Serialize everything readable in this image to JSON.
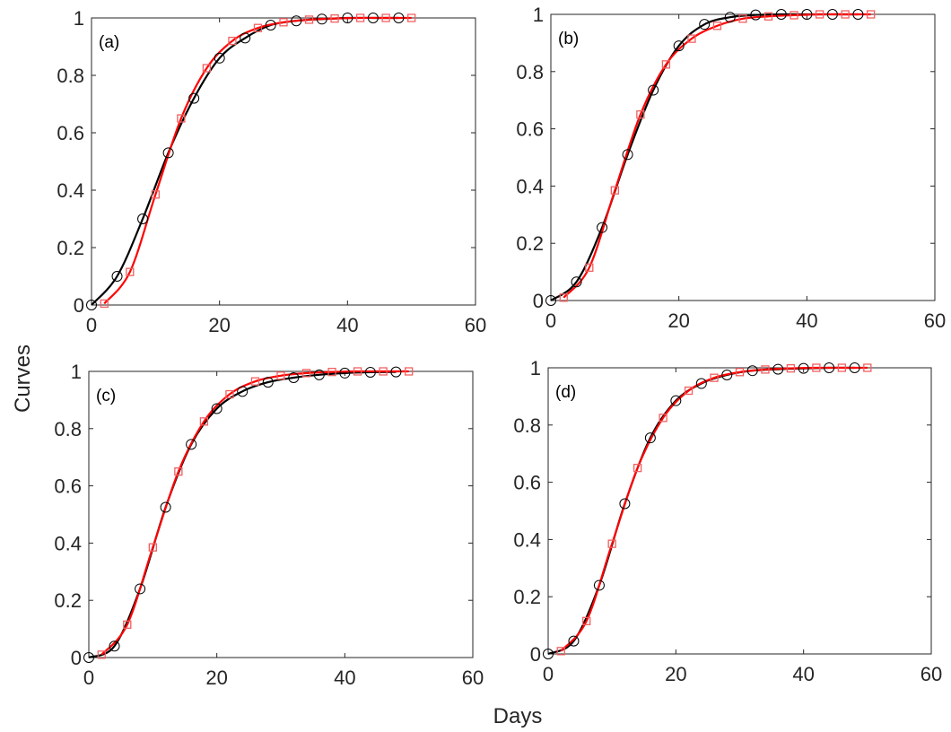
{
  "chart_data": {
    "type": "line",
    "layout": "2x2 subplots",
    "xlabel": "Days",
    "ylabel": "Curves",
    "xlim": [
      0,
      60
    ],
    "ylim": [
      0,
      1
    ],
    "xticks": [
      "0",
      "20",
      "40",
      "60"
    ],
    "yticks": [
      "0",
      "0.2",
      "0.4",
      "0.6",
      "0.8",
      "1"
    ],
    "grid": false,
    "colors": {
      "black_series": "#000000",
      "red_series": "#ff0000",
      "red_marker": "#f06060"
    },
    "panels": [
      {
        "label": "(a)",
        "series": [
          {
            "color": "#000000",
            "marker": "circle",
            "x": [
              0,
              4,
              8,
              12,
              16,
              20,
              24,
              28,
              32,
              36,
              40,
              44,
              48
            ],
            "y": [
              0,
              0.1,
              0.3,
              0.53,
              0.72,
              0.86,
              0.93,
              0.975,
              0.99,
              0.996,
              1,
              1,
              1
            ]
          },
          {
            "color": "#ff0000",
            "marker": "square",
            "x": [
              2,
              6,
              10,
              14,
              18,
              22,
              26,
              30,
              34,
              38,
              42,
              46,
              50
            ],
            "y": [
              0.005,
              0.115,
              0.385,
              0.65,
              0.825,
              0.92,
              0.965,
              0.985,
              0.994,
              0.998,
              1,
              1,
              1
            ]
          }
        ]
      },
      {
        "label": "(b)",
        "series": [
          {
            "color": "#000000",
            "marker": "circle",
            "x": [
              0,
              4,
              8,
              12,
              16,
              20,
              24,
              28,
              32,
              36,
              40,
              44,
              48
            ],
            "y": [
              0,
              0.065,
              0.255,
              0.51,
              0.735,
              0.89,
              0.965,
              0.99,
              0.998,
              1,
              1,
              1,
              1
            ]
          },
          {
            "color": "#ff0000",
            "marker": "square",
            "x": [
              2,
              6,
              10,
              14,
              18,
              22,
              26,
              30,
              34,
              38,
              42,
              46,
              50
            ],
            "y": [
              0.01,
              0.115,
              0.385,
              0.65,
              0.825,
              0.915,
              0.96,
              0.985,
              0.993,
              0.997,
              1,
              1,
              1
            ]
          }
        ]
      },
      {
        "label": "(c)",
        "series": [
          {
            "color": "#000000",
            "marker": "circle",
            "x": [
              0,
              4,
              8,
              12,
              16,
              20,
              24,
              28,
              32,
              36,
              40,
              44,
              48
            ],
            "y": [
              0,
              0.04,
              0.24,
              0.525,
              0.745,
              0.87,
              0.93,
              0.962,
              0.978,
              0.988,
              0.994,
              0.997,
              0.998
            ]
          },
          {
            "color": "#ff0000",
            "marker": "square",
            "x": [
              2,
              6,
              10,
              14,
              18,
              22,
              26,
              30,
              34,
              38,
              42,
              46,
              50
            ],
            "y": [
              0.01,
              0.115,
              0.385,
              0.65,
              0.825,
              0.92,
              0.965,
              0.985,
              0.994,
              0.998,
              1,
              1,
              1
            ]
          }
        ]
      },
      {
        "label": "(d)",
        "series": [
          {
            "color": "#000000",
            "marker": "circle",
            "x": [
              0,
              4,
              8,
              12,
              16,
              20,
              24,
              28,
              32,
              36,
              40,
              44,
              48
            ],
            "y": [
              0,
              0.045,
              0.24,
              0.525,
              0.755,
              0.885,
              0.945,
              0.975,
              0.99,
              0.995,
              0.998,
              1,
              1
            ]
          },
          {
            "color": "#ff0000",
            "marker": "square",
            "x": [
              2,
              6,
              10,
              14,
              18,
              22,
              26,
              30,
              34,
              38,
              42,
              46,
              50
            ],
            "y": [
              0.01,
              0.115,
              0.385,
              0.65,
              0.825,
              0.92,
              0.965,
              0.985,
              0.994,
              0.998,
              1,
              1,
              1
            ]
          }
        ]
      }
    ]
  }
}
